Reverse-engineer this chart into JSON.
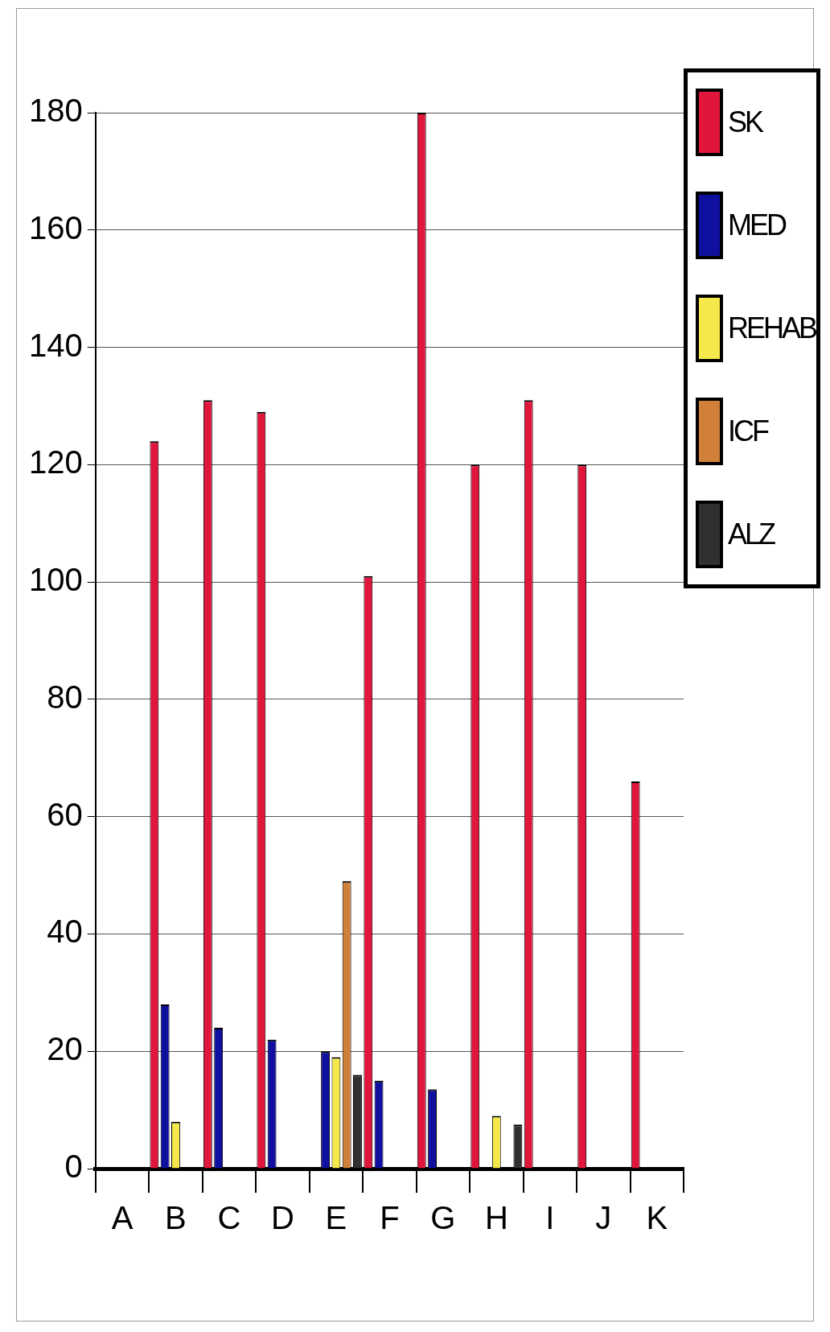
{
  "chart_data": {
    "type": "bar",
    "categories": [
      "A",
      "B",
      "C",
      "D",
      "E",
      "F",
      "G",
      "H",
      "I",
      "J",
      "K"
    ],
    "series": [
      {
        "name": "SK",
        "color": "#e0163c",
        "values": [
          null,
          124,
          131,
          129,
          null,
          101,
          180,
          120,
          131,
          120,
          66
        ]
      },
      {
        "name": "MED",
        "color": "#1010a0",
        "values": [
          null,
          28,
          24,
          22,
          20,
          15,
          13.5,
          null,
          null,
          null,
          null
        ]
      },
      {
        "name": "REHAB",
        "color": "#f5e84a",
        "values": [
          null,
          8,
          null,
          null,
          19,
          null,
          null,
          9,
          null,
          null,
          null
        ]
      },
      {
        "name": "ICF",
        "color": "#d08038",
        "values": [
          null,
          null,
          null,
          null,
          49,
          null,
          null,
          null,
          null,
          null,
          null
        ]
      },
      {
        "name": "ALZ",
        "color": "#303030",
        "values": [
          null,
          null,
          null,
          null,
          16,
          null,
          null,
          7.5,
          null,
          null,
          null
        ]
      }
    ],
    "ylim": [
      0,
      180
    ],
    "yticks": [
      0,
      20,
      40,
      60,
      80,
      100,
      120,
      140,
      160,
      180
    ],
    "grid": "y",
    "legend": "top right"
  }
}
